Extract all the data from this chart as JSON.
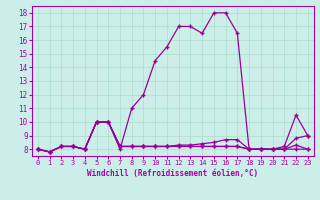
{
  "xlabel": "Windchill (Refroidissement éolien,°C)",
  "background_color": "#cceee8",
  "line_color": "#990099",
  "hours": [
    0,
    1,
    2,
    3,
    4,
    5,
    6,
    7,
    8,
    9,
    10,
    11,
    12,
    13,
    14,
    15,
    16,
    17,
    18,
    19,
    20,
    21,
    22,
    23
  ],
  "temp": [
    8,
    7.8,
    8.2,
    8.2,
    8,
    10,
    10,
    8,
    11,
    12,
    14.5,
    15.5,
    17,
    17,
    16.5,
    18,
    18,
    16.5,
    8,
    8,
    8,
    8.2,
    10.5,
    9
  ],
  "windchill1": [
    8,
    7.8,
    8.2,
    8.2,
    8,
    10,
    10,
    8.2,
    8.2,
    8.2,
    8.2,
    8.2,
    8.3,
    8.3,
    8.4,
    8.5,
    8.7,
    8.7,
    8.0,
    8.0,
    8.0,
    8.0,
    8.8,
    9.0
  ],
  "windchill2": [
    8,
    7.8,
    8.2,
    8.2,
    8,
    10,
    10,
    8.2,
    8.2,
    8.2,
    8.2,
    8.2,
    8.2,
    8.2,
    8.2,
    8.2,
    8.2,
    8.2,
    8.0,
    8.0,
    8.0,
    8.0,
    8.0,
    8.0
  ],
  "windchill3": [
    8,
    7.8,
    8.2,
    8.2,
    8,
    10,
    10,
    8.2,
    8.2,
    8.2,
    8.2,
    8.2,
    8.2,
    8.2,
    8.2,
    8.2,
    8.2,
    8.2,
    8.0,
    8.0,
    8.0,
    8.0,
    8.3,
    8.0
  ],
  "ylim": [
    7.5,
    18.5
  ],
  "xlim": [
    -0.5,
    23.5
  ],
  "yticks": [
    8,
    9,
    10,
    11,
    12,
    13,
    14,
    15,
    16,
    17,
    18
  ],
  "xticks": [
    0,
    1,
    2,
    3,
    4,
    5,
    6,
    7,
    8,
    9,
    10,
    11,
    12,
    13,
    14,
    15,
    16,
    17,
    18,
    19,
    20,
    21,
    22,
    23
  ],
  "grid_color": "#aaddcc",
  "font_color": "#aa00aa",
  "marker": "+"
}
